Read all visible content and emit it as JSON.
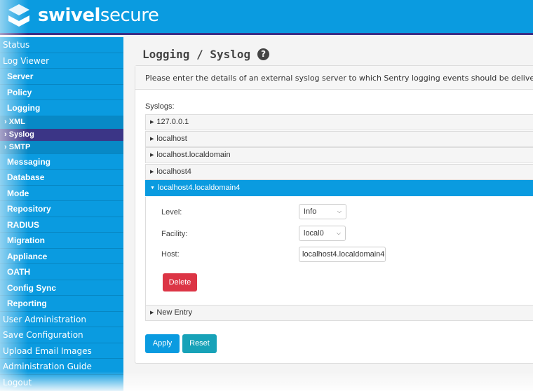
{
  "header": {
    "brand_bold": "swivel",
    "brand_light": "secure"
  },
  "sidebar": {
    "items": [
      {
        "label": "Status",
        "level": "top"
      },
      {
        "label": "Log Viewer",
        "level": "top"
      },
      {
        "label": "Server",
        "level": "lvl2"
      },
      {
        "label": "Policy",
        "level": "lvl2"
      },
      {
        "label": "Logging",
        "level": "lvl2",
        "expanded": true
      },
      {
        "label": "XML",
        "level": "sub"
      },
      {
        "label": "Syslog",
        "level": "sub",
        "active": true
      },
      {
        "label": "SMTP",
        "level": "sub"
      },
      {
        "label": "Messaging",
        "level": "lvl2"
      },
      {
        "label": "Database",
        "level": "lvl2"
      },
      {
        "label": "Mode",
        "level": "lvl2"
      },
      {
        "label": "Repository",
        "level": "lvl2"
      },
      {
        "label": "RADIUS",
        "level": "lvl2"
      },
      {
        "label": "Migration",
        "level": "lvl2"
      },
      {
        "label": "Appliance",
        "level": "lvl2"
      },
      {
        "label": "OATH",
        "level": "lvl2"
      },
      {
        "label": "Config Sync",
        "level": "lvl2"
      },
      {
        "label": "Reporting",
        "level": "lvl2"
      },
      {
        "label": "User Administration",
        "level": "top"
      },
      {
        "label": "Save Configuration",
        "level": "top"
      },
      {
        "label": "Upload Email Images",
        "level": "top"
      },
      {
        "label": "Administration Guide",
        "level": "top"
      },
      {
        "label": "Logout",
        "level": "top"
      }
    ]
  },
  "page": {
    "title": "Logging / Syslog",
    "help_icon": "?",
    "intro": "Please enter the details of an external syslog server to which Sentry logging events should be delivered.",
    "syslogs_label": "Syslogs:"
  },
  "syslogs": [
    "127.0.0.1",
    "localhost",
    "localhost.localdomain",
    "localhost4",
    "localhost4.localdomain4"
  ],
  "expanded": {
    "level_label": "Level:",
    "level_value": "Info",
    "facility_label": "Facility:",
    "facility_value": "local0",
    "host_label": "Host:",
    "host_value": "localhost4.localdomain4",
    "delete_label": "Delete"
  },
  "new_entry": "New Entry",
  "buttons": {
    "apply": "Apply",
    "reset": "Reset"
  },
  "colors": {
    "primary": "#0a9be0",
    "active_nav": "#3b3586",
    "danger": "#dc3545",
    "reset": "#17a2b8"
  }
}
